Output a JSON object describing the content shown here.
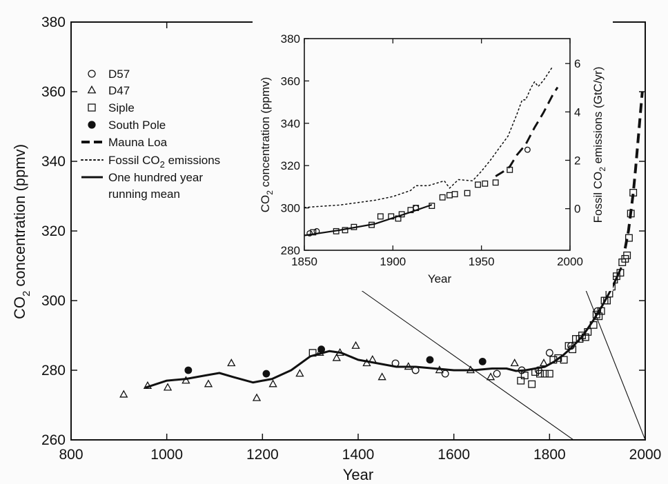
{
  "chart_data": [
    {
      "type": "scatter",
      "xlabel": "Year",
      "ylabel": "CO",
      "ylabel_sub": "2",
      "ylabel_suffix": " concentration (ppmv)",
      "xlim": [
        800,
        2000
      ],
      "ylim": [
        260,
        380
      ],
      "xticks": [
        800,
        1000,
        1200,
        1400,
        1600,
        1800,
        2000
      ],
      "yticks": [
        260,
        280,
        300,
        320,
        340,
        360,
        380
      ],
      "legend_position": "upper-left",
      "legend": [
        {
          "key": "d57",
          "label": "D57",
          "marker": "open-circle"
        },
        {
          "key": "d47",
          "label": "D47",
          "marker": "open-triangle"
        },
        {
          "key": "siple",
          "label": "Siple",
          "marker": "open-square"
        },
        {
          "key": "south_pole",
          "label": "South Pole",
          "marker": "filled-circle"
        },
        {
          "key": "mauna_loa",
          "label": "Mauna Loa",
          "marker": "thick-dashed-line"
        },
        {
          "key": "fossil",
          "label": "Fossil CO",
          "label_sub": "2",
          "label_suffix": " emissions",
          "marker": "dotted-line"
        },
        {
          "key": "running_mean",
          "label": "One hundred year",
          "label2": "running mean",
          "marker": "solid-line"
        }
      ],
      "series": [
        {
          "key": "d57",
          "marker": "open-circle",
          "points": [
            [
              1478,
              282
            ],
            [
              1520,
              280
            ],
            [
              1582,
              279
            ],
            [
              1690,
              279
            ],
            [
              1742,
              280
            ],
            [
              1777,
              280
            ],
            [
              1800,
              285
            ],
            [
              1845,
              287
            ],
            [
              1900,
              297
            ]
          ]
        },
        {
          "key": "d47",
          "marker": "open-triangle",
          "points": [
            [
              910,
              273
            ],
            [
              960,
              275.5
            ],
            [
              1002,
              275
            ],
            [
              1040,
              277
            ],
            [
              1087,
              276
            ],
            [
              1135,
              282
            ],
            [
              1188,
              272
            ],
            [
              1222,
              276
            ],
            [
              1278,
              279
            ],
            [
              1320,
              285
            ],
            [
              1355,
              283.5
            ],
            [
              1362,
              285
            ],
            [
              1395,
              287
            ],
            [
              1418,
              282
            ],
            [
              1430,
              283
            ],
            [
              1450,
              278
            ],
            [
              1505,
              281
            ],
            [
              1570,
              280
            ],
            [
              1635,
              280
            ],
            [
              1677,
              278
            ],
            [
              1727,
              282
            ],
            [
              1788,
              282
            ]
          ]
        },
        {
          "key": "siple",
          "marker": "open-square",
          "points": [
            [
              1305,
              285
            ],
            [
              1740,
              277
            ],
            [
              1748,
              278.5
            ],
            [
              1763,
              276
            ],
            [
              1770,
              279.5
            ],
            [
              1780,
              279
            ],
            [
              1790,
              279
            ],
            [
              1800,
              279
            ],
            [
              1808,
              283
            ],
            [
              1818,
              283.5
            ],
            [
              1830,
              283
            ],
            [
              1840,
              287
            ],
            [
              1848,
              286
            ],
            [
              1855,
              289
            ],
            [
              1863,
              289
            ],
            [
              1868,
              290
            ],
            [
              1875,
              289.5
            ],
            [
              1880,
              291
            ],
            [
              1892,
              293
            ],
            [
              1898,
              296
            ],
            [
              1903,
              295.5
            ],
            [
              1908,
              297
            ],
            [
              1915,
              300
            ],
            [
              1920,
              300
            ],
            [
              1925,
              302
            ],
            [
              1930,
              304
            ],
            [
              1935,
              306
            ],
            [
              1940,
              307
            ],
            [
              1948,
              308
            ],
            [
              1952,
              311
            ],
            [
              1958,
              312
            ],
            [
              1962,
              313
            ],
            [
              1966,
              318
            ],
            [
              1970,
              325
            ],
            [
              1975,
              331
            ]
          ]
        },
        {
          "key": "south_pole",
          "marker": "filled-circle",
          "points": [
            [
              1045,
              280
            ],
            [
              1208,
              279
            ],
            [
              1323,
              286
            ],
            [
              1550,
              283
            ],
            [
              1660,
              282.5
            ]
          ]
        },
        {
          "key": "mauna_loa",
          "marker": "thick-dashed-line",
          "points": [
            [
              1958,
              315
            ],
            [
              1965,
              320
            ],
            [
              1970,
              325.5
            ],
            [
              1975,
              331
            ],
            [
              1980,
              338
            ],
            [
              1985,
              346
            ],
            [
              1990,
              354
            ],
            [
              1994,
              360
            ]
          ]
        },
        {
          "key": "running_mean",
          "marker": "solid-line",
          "points": [
            [
              955,
              275
            ],
            [
              1000,
              277
            ],
            [
              1040,
              277.5
            ],
            [
              1080,
              278.5
            ],
            [
              1110,
              279.2
            ],
            [
              1140,
              278
            ],
            [
              1180,
              276.5
            ],
            [
              1220,
              277.5
            ],
            [
              1260,
              280
            ],
            [
              1300,
              284
            ],
            [
              1340,
              285.5
            ],
            [
              1365,
              285
            ],
            [
              1400,
              283
            ],
            [
              1440,
              282
            ],
            [
              1480,
              281
            ],
            [
              1520,
              281
            ],
            [
              1560,
              280.5
            ],
            [
              1600,
              280
            ],
            [
              1640,
              280
            ],
            [
              1680,
              280.5
            ],
            [
              1710,
              280.5
            ],
            [
              1730,
              279.8
            ],
            [
              1750,
              280
            ],
            [
              1770,
              280.5
            ],
            [
              1790,
              281
            ],
            [
              1810,
              282.5
            ],
            [
              1830,
              284.5
            ],
            [
              1850,
              287
            ],
            [
              1870,
              290
            ],
            [
              1890,
              294
            ],
            [
              1910,
              298.5
            ],
            [
              1930,
              303.5
            ],
            [
              1950,
              309.5
            ]
          ]
        }
      ]
    },
    {
      "type": "scatter",
      "position": "inset",
      "xlabel": "Year",
      "ylabel": "CO",
      "ylabel_sub": "2",
      "ylabel_suffix": " concentration (ppmv)",
      "y2label": "Fossil CO",
      "y2label_sub": "2",
      "y2label_suffix": " emissions (GtC/yr)",
      "xlim": [
        1850,
        2000
      ],
      "ylim": [
        280,
        380
      ],
      "y2lim": [
        -1.72,
        7.03
      ],
      "xticks": [
        1850,
        1900,
        1950,
        2000
      ],
      "yticks": [
        280,
        300,
        320,
        340,
        360,
        380
      ],
      "y2ticks": [
        0,
        2,
        4,
        6
      ],
      "series": [
        {
          "key": "siple",
          "marker": "open-square",
          "points": [
            [
              1855,
              288.5
            ],
            [
              1868,
              289
            ],
            [
              1873,
              289.5
            ],
            [
              1878,
              291
            ],
            [
              1888,
              292
            ],
            [
              1893,
              296
            ],
            [
              1899,
              296
            ],
            [
              1903,
              295
            ],
            [
              1905,
              297
            ],
            [
              1910,
              299
            ],
            [
              1913,
              300
            ],
            [
              1922,
              301
            ],
            [
              1928,
              305
            ],
            [
              1932,
              306
            ],
            [
              1935,
              306.5
            ],
            [
              1942,
              307
            ],
            [
              1948,
              311
            ],
            [
              1952,
              311.5
            ],
            [
              1958,
              312
            ],
            [
              1966,
              318
            ]
          ]
        },
        {
          "key": "d57",
          "marker": "open-circle",
          "points": [
            [
              1853,
              288
            ],
            [
              1857,
              289
            ],
            [
              1913,
              300
            ],
            [
              1976,
              327.5
            ]
          ]
        },
        {
          "key": "mauna_loa",
          "marker": "thick-dashed-line",
          "points": [
            [
              1958,
              315
            ],
            [
              1962,
              317
            ],
            [
              1966,
              319.5
            ],
            [
              1970,
              325
            ],
            [
              1975,
              330
            ],
            [
              1980,
              338
            ],
            [
              1985,
              345
            ],
            [
              1990,
              353
            ],
            [
              1993,
              357
            ]
          ]
        },
        {
          "key": "fossil",
          "marker": "dotted-line",
          "axis": "right",
          "points": [
            [
              1850,
              0.05
            ],
            [
              1860,
              0.1
            ],
            [
              1870,
              0.15
            ],
            [
              1880,
              0.25
            ],
            [
              1890,
              0.35
            ],
            [
              1900,
              0.5
            ],
            [
              1910,
              0.75
            ],
            [
              1913,
              0.95
            ],
            [
              1920,
              0.95
            ],
            [
              1929,
              1.15
            ],
            [
              1932,
              0.85
            ],
            [
              1937,
              1.2
            ],
            [
              1945,
              1.15
            ],
            [
              1950,
              1.55
            ],
            [
              1955,
              2.0
            ],
            [
              1960,
              2.5
            ],
            [
              1965,
              3.0
            ],
            [
              1970,
              3.9
            ],
            [
              1973,
              4.5
            ],
            [
              1975,
              4.5
            ],
            [
              1978,
              5.0
            ],
            [
              1980,
              5.25
            ],
            [
              1982,
              5.05
            ],
            [
              1985,
              5.3
            ],
            [
              1990,
              5.85
            ]
          ]
        },
        {
          "key": "running_mean",
          "marker": "solid-line",
          "points": [
            [
              1850,
              287
            ],
            [
              1870,
              289.5
            ],
            [
              1890,
              292.5
            ],
            [
              1910,
              298
            ],
            [
              1922,
              301.5
            ]
          ]
        }
      ]
    }
  ]
}
